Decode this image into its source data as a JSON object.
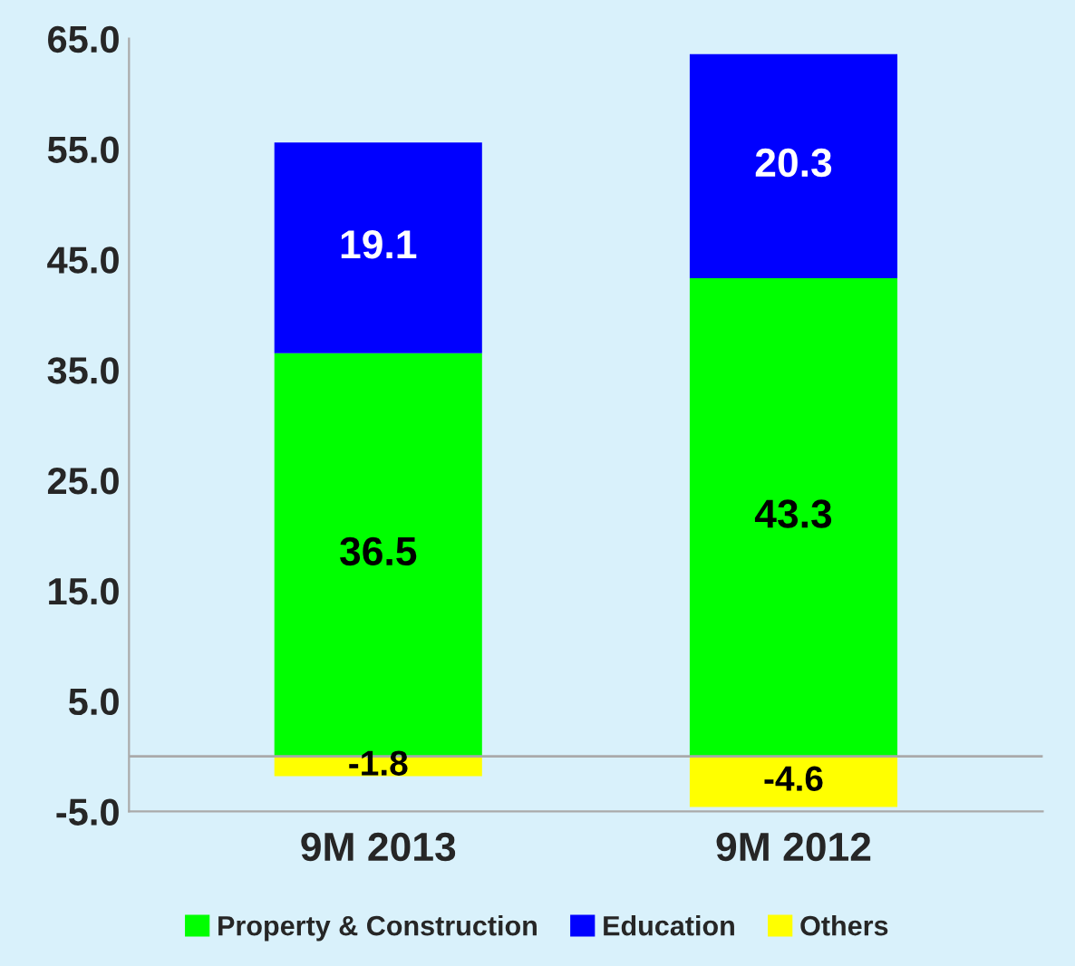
{
  "chart_data": {
    "type": "bar",
    "stacked": true,
    "categories": [
      "9M 2013",
      "9M 2012"
    ],
    "series": [
      {
        "name": "Property & Construction",
        "color": "#00ff00",
        "values": [
          36.5,
          43.3
        ]
      },
      {
        "name": "Education",
        "color": "#0000ff",
        "values": [
          19.1,
          20.3
        ]
      },
      {
        "name": "Others",
        "color": "#ffff00",
        "values": [
          -1.8,
          -4.6
        ]
      }
    ],
    "ylim": [
      -5,
      65
    ],
    "yticks": [
      {
        "value": -5,
        "label": "-5.0"
      },
      {
        "value": 5,
        "label": "5.0"
      },
      {
        "value": 15,
        "label": "15.0"
      },
      {
        "value": 25,
        "label": "25.0"
      },
      {
        "value": 35,
        "label": "35.0"
      },
      {
        "value": 45,
        "label": "45.0"
      },
      {
        "value": 55,
        "label": "55.0"
      },
      {
        "value": 65,
        "label": "65.0"
      }
    ],
    "data_labels": true,
    "legend": "bottom"
  }
}
